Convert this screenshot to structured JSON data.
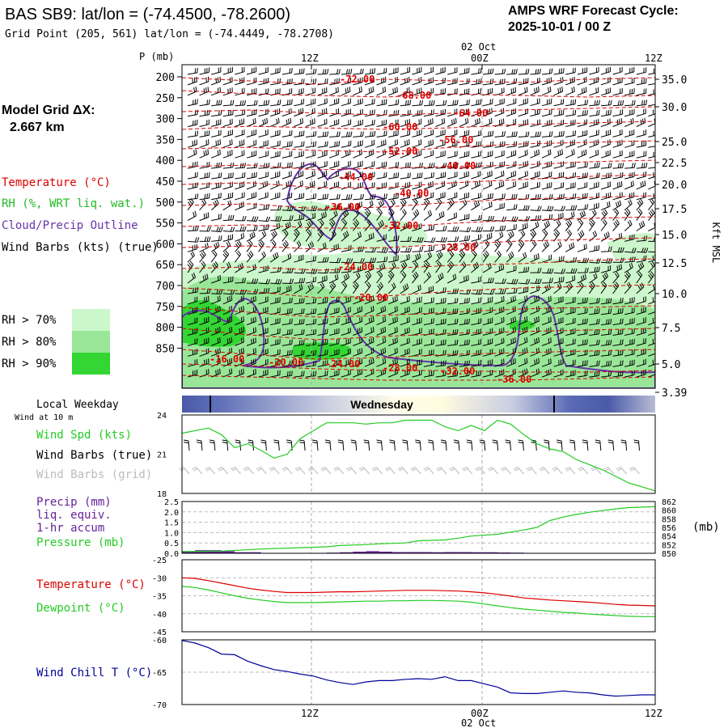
{
  "header": {
    "title": "BAS SB9:  lat/lon = (-74.4500, -78.2600)",
    "grid_point": "Grid Point (205, 561) lat/lon = (-74.4449, -78.2708)",
    "forecast_label": "AMPS WRF Forecast Cycle:",
    "forecast_cycle": "2025-10-01 / 00  Z"
  },
  "legend": {
    "model_grid": "Model Grid ΔX:",
    "model_grid_value": "2.667 km",
    "temperature": "Temperature (°C)",
    "rh": "RH (%, WRT liq. wat.)",
    "cloud": "Cloud/Precip Outline",
    "wind_barbs": "Wind Barbs (kts) (true)",
    "rh70": "RH > 70%",
    "rh80": "RH > 80%",
    "rh90": "RH > 90%",
    "rh_colors": [
      "#ccf7cc",
      "#99e699",
      "#33d633"
    ]
  },
  "time_axis": {
    "top_date": "02 Oct",
    "bottom_date": "02 Oct",
    "ticks": [
      "12Z",
      "00Z",
      "12Z"
    ]
  },
  "cross_section": {
    "pressure_title": "P (mb)",
    "right_axis_title": "Kft MSL",
    "pressure_ticks": [
      "200",
      "250",
      "300",
      "350",
      "400",
      "450",
      "500",
      "550",
      "600",
      "650",
      "700",
      "750",
      "800",
      "850"
    ],
    "height_ticks": [
      "35.0",
      "30.0",
      "25.0",
      "22.5",
      "20.0",
      "17.5",
      "15.0",
      "12.5",
      "10.0",
      "7.5",
      "5.0",
      "3.39"
    ],
    "isotherm_labels": [
      "-72.00",
      "-68.00",
      "-64.00",
      "-60.00",
      "-56.00",
      "-52.00",
      "-48.00",
      "-44.00",
      "-40.00",
      "-36.00",
      "-32.00",
      "-28.00",
      "-24.00",
      "-20.00",
      "-16.00",
      "-20.00",
      "-24.00",
      "-28.00",
      "-32.00",
      "-36.00"
    ]
  },
  "weekday": {
    "label": "Local Weekday",
    "day": "Wednesday"
  },
  "colors": {
    "temperature": "#dd0000",
    "rh": "#22bb22",
    "cloud": "#6633aa",
    "wind_speed": "#22cc22",
    "dewpoint": "#22cc22",
    "precip": "#662299",
    "wind_chill": "#000099",
    "grid_barbs": "#bbbbbb"
  },
  "panels": {
    "wind_at_10m": "Wind at 10 m",
    "wind_speed_label": "Wind Spd (kts)",
    "wind_barbs_true": "Wind Barbs (true)",
    "wind_barbs_grid": "Wind Barbs (grid)",
    "precip_label": "Precip (mm)",
    "precip_sub1": "liq. equiv.",
    "precip_sub2": "1-hr accum",
    "pressure_label": "Pressure (mb)",
    "pressure_unit": "(mb)",
    "temperature_label": "Temperature (°C)",
    "dewpoint_label": "Dewpoint (°C)",
    "wind_chill_label": "Wind Chill T (°C)"
  },
  "chart_data": [
    {
      "type": "line",
      "title": "Wind Spd (kts)",
      "x_hours": [
        0,
        2,
        3,
        4,
        5,
        6,
        7,
        8,
        9,
        10,
        11,
        12,
        13,
        14,
        15,
        16,
        17,
        18,
        19,
        20,
        21,
        22,
        23,
        24,
        25,
        26,
        27,
        28,
        29,
        30,
        31,
        32,
        33,
        34,
        35,
        36
      ],
      "values": [
        22.6,
        23.0,
        22.5,
        21.5,
        21.8,
        21.3,
        20.7,
        21.0,
        22.2,
        22.8,
        23.4,
        23.4,
        23.4,
        23.3,
        23.4,
        23.4,
        23.6,
        23.6,
        23.6,
        23.1,
        22.8,
        23.2,
        22.8,
        23.6,
        23.3,
        22.5,
        21.8,
        21.4,
        21.2,
        20.6,
        20.2,
        19.8,
        19.3,
        18.8,
        18.5,
        18.2
      ],
      "ylim": [
        18,
        24
      ],
      "y_ticks": [
        "24",
        "21",
        "18"
      ]
    },
    {
      "type": "line",
      "title": "Pressure (mb)",
      "x_hours": [
        0,
        3,
        6,
        9,
        11,
        12,
        14,
        15,
        17,
        18,
        20,
        21,
        22,
        24,
        26,
        27,
        28,
        29,
        30,
        31,
        32,
        33,
        34,
        36
      ],
      "values": [
        850.4,
        850.5,
        851.0,
        851.3,
        851.5,
        851.8,
        852.0,
        852.2,
        852.4,
        852.9,
        853.1,
        853.5,
        854.0,
        854.4,
        855.4,
        856.0,
        857.6,
        858.4,
        859.0,
        859.5,
        859.9,
        860.3,
        860.6,
        860.8
      ],
      "ylim": [
        850,
        862
      ],
      "precip_ticks": [
        "2.5",
        "2.0",
        "1.5",
        "1.0",
        "0.5",
        "0.0"
      ],
      "pressure_ticks": [
        "862",
        "860",
        "858",
        "856",
        "854",
        "852",
        "850"
      ]
    },
    {
      "type": "bar",
      "title": "Precip (mm)",
      "x_hours": [
        0,
        1,
        2,
        3,
        4,
        5,
        6,
        7,
        8,
        9,
        10,
        11,
        12,
        13,
        14,
        15,
        16,
        17,
        18,
        19,
        20,
        21,
        22,
        23,
        24,
        25,
        26
      ],
      "values": [
        0.1,
        0.15,
        0.15,
        0.1,
        0.05,
        0.05,
        0.02,
        0.02,
        0.02,
        0.02,
        0.02,
        0.03,
        0.05,
        0.08,
        0.1,
        0.08,
        0.06,
        0.06,
        0.06,
        0.05,
        0.06,
        0.06,
        0.05,
        0.05,
        0.04,
        0.03,
        0.02
      ],
      "ylim": [
        0,
        2.5
      ]
    },
    {
      "type": "line",
      "title": "Temperature / Dewpoint",
      "x_hours": [
        0,
        1,
        2,
        3,
        4,
        5,
        6,
        7,
        8,
        9,
        10,
        11,
        12,
        13,
        14,
        15,
        16,
        17,
        18,
        19,
        20,
        21,
        22,
        23,
        24,
        25,
        26,
        27,
        28,
        29,
        30,
        31,
        32,
        33,
        34,
        35,
        36
      ],
      "series": [
        {
          "name": "Temperature",
          "values": [
            -30,
            -30.2,
            -30.8,
            -31.5,
            -32.2,
            -32.9,
            -33.4,
            -33.8,
            -34.1,
            -34.1,
            -34.1,
            -34,
            -33.9,
            -33.9,
            -33.8,
            -33.7,
            -33.6,
            -33.5,
            -33.5,
            -33.5,
            -33.6,
            -33.7,
            -33.9,
            -34.2,
            -34.6,
            -35.1,
            -35.6,
            -35.9,
            -36.2,
            -36.4,
            -36.6,
            -36.8,
            -37.1,
            -37.4,
            -37.6,
            -37.7,
            -37.8
          ]
        },
        {
          "name": "Dewpoint",
          "values": [
            -32.4,
            -32.7,
            -33.4,
            -34.2,
            -35,
            -35.7,
            -36.2,
            -36.6,
            -36.9,
            -36.9,
            -36.9,
            -36.8,
            -36.7,
            -36.6,
            -36.5,
            -36.5,
            -36.4,
            -36.4,
            -36.3,
            -36.3,
            -36.4,
            -36.5,
            -36.8,
            -37.3,
            -37.8,
            -38.3,
            -38.7,
            -39,
            -39.3,
            -39.6,
            -39.8,
            -40.1,
            -40.3,
            -40.5,
            -40.7,
            -40.8,
            -40.8
          ]
        }
      ],
      "ylim": [
        -45,
        -25
      ],
      "y_ticks": [
        "-25",
        "-30",
        "-35",
        "-40",
        "-45"
      ]
    },
    {
      "type": "line",
      "title": "Wind Chill T (°C)",
      "x_hours": [
        0,
        1,
        2,
        3,
        4,
        5,
        6,
        7,
        8,
        9,
        10,
        11,
        12,
        13,
        14,
        15,
        16,
        17,
        18,
        19,
        20,
        21,
        22,
        23,
        24,
        25,
        26,
        27,
        28,
        29,
        30,
        31,
        32,
        33,
        34,
        35,
        36
      ],
      "values": [
        -60.1,
        -60.5,
        -61.2,
        -62.2,
        -62.3,
        -63.3,
        -64.0,
        -64.6,
        -64.9,
        -65.3,
        -65.6,
        -66.2,
        -66.6,
        -66.9,
        -66.5,
        -66.3,
        -66.3,
        -66.1,
        -66.0,
        -66.1,
        -65.7,
        -66.3,
        -66.3,
        -66.8,
        -67.3,
        -68.2,
        -68.3,
        -68.3,
        -68.1,
        -67.9,
        -68.1,
        -68.2,
        -68.5,
        -68.7,
        -68.6,
        -68.5,
        -68.5
      ],
      "ylim": [
        -70,
        -60
      ],
      "y_ticks": [
        "-60",
        "-65",
        "-70"
      ]
    }
  ]
}
